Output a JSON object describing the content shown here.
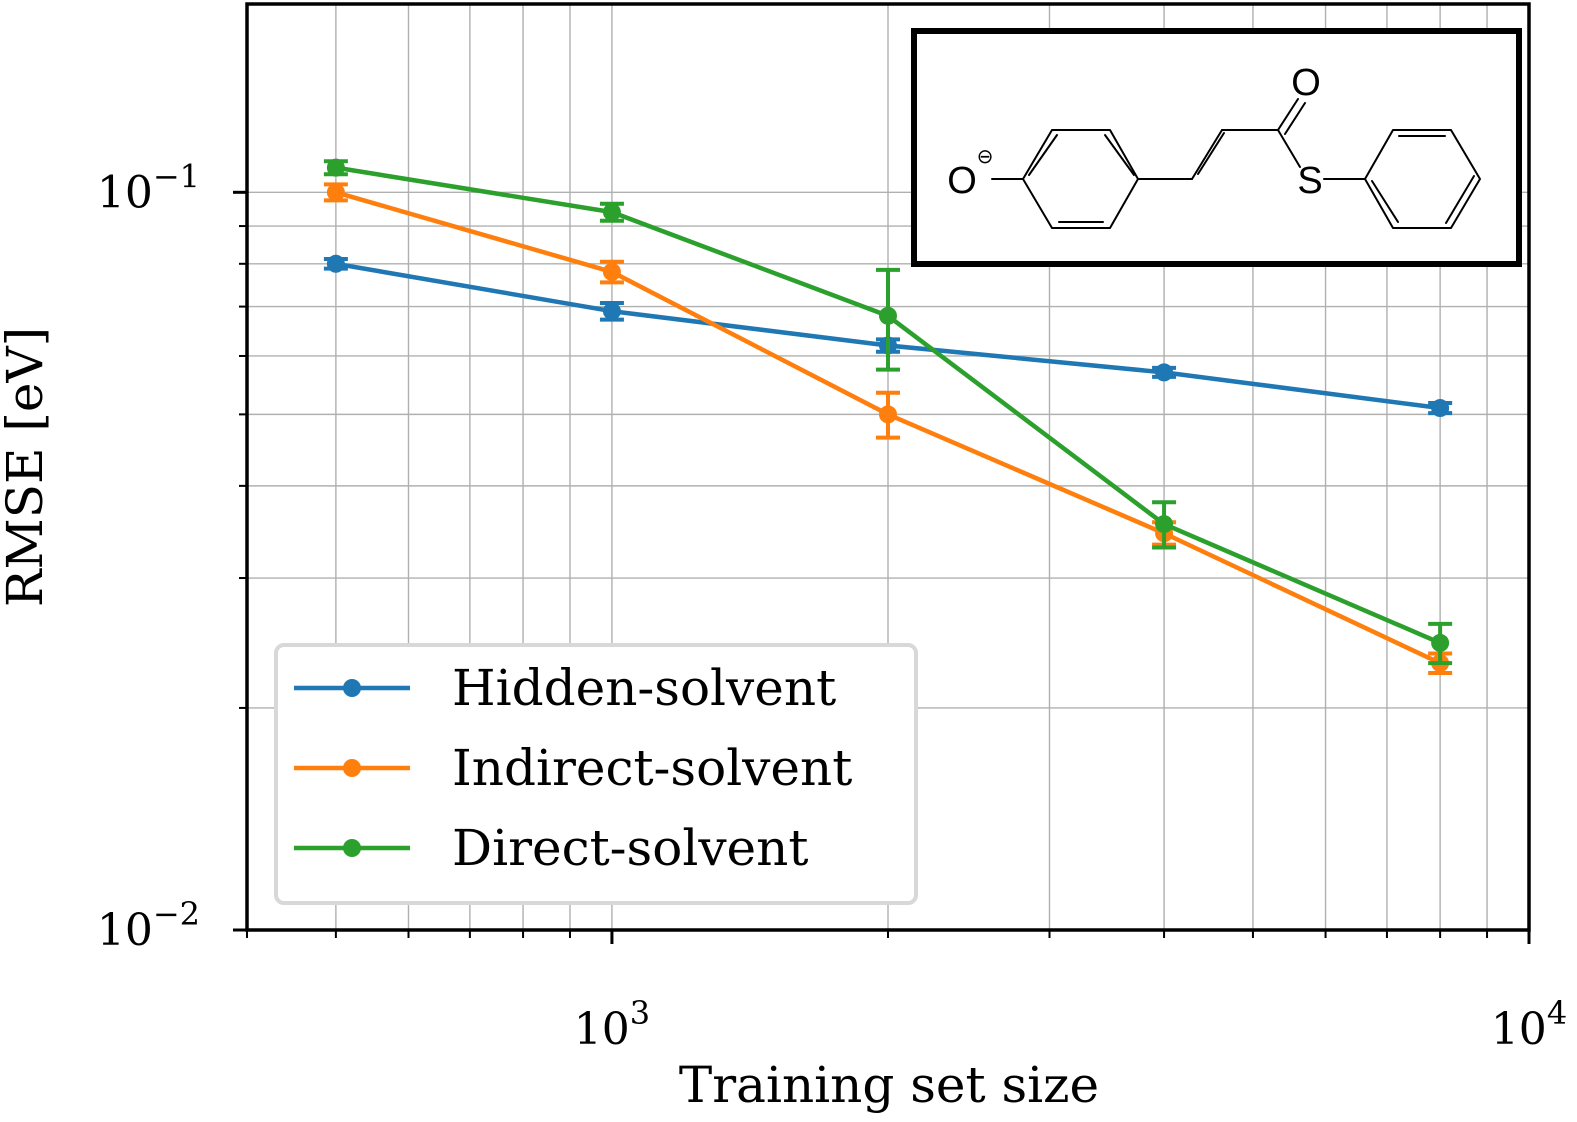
{
  "chart_data": {
    "type": "line",
    "xlabel": "Training set size",
    "ylabel": "RMSE [eV]",
    "xscale": "log",
    "yscale": "log",
    "xlim": [
      400,
      10000
    ],
    "ylim": [
      0.01,
      0.18
    ],
    "x_major_ticks": [
      {
        "value": 1000,
        "base": "10",
        "exp": "3"
      },
      {
        "value": 10000,
        "base": "10",
        "exp": "4"
      }
    ],
    "y_major_ticks": [
      {
        "value": 0.01,
        "base": "10",
        "exp": "−2"
      },
      {
        "value": 0.1,
        "base": "10",
        "exp": "−1"
      }
    ],
    "grid": true,
    "legend_position": "lower-left",
    "x": [
      500,
      1000,
      2000,
      4000,
      8000
    ],
    "series": [
      {
        "name": "Hidden-solvent",
        "color": "#1f77b4",
        "values": [
          0.08,
          0.069,
          0.062,
          0.057,
          0.051
        ],
        "errors": [
          0.0012,
          0.0018,
          0.0012,
          0.0008,
          0.0008
        ]
      },
      {
        "name": "Indirect-solvent",
        "color": "#ff7f0e",
        "values": [
          0.1,
          0.078,
          0.05,
          0.0345,
          0.023
        ],
        "errors": [
          0.0025,
          0.0025,
          0.0035,
          0.0012,
          0.0007
        ]
      },
      {
        "name": "Direct-solvent",
        "color": "#2ca02c",
        "values": [
          0.108,
          0.094,
          0.068,
          0.0355,
          0.0245
        ],
        "errors": [
          0.0022,
          0.0025,
          0.0105,
          0.0025,
          0.0015
        ]
      }
    ],
    "inset": {
      "type": "molecule-structure",
      "atom_labels": {
        "phenolate_oxygen": "O",
        "charge": "⊖",
        "carbonyl_oxygen": "O",
        "sulfur": "S"
      }
    }
  }
}
